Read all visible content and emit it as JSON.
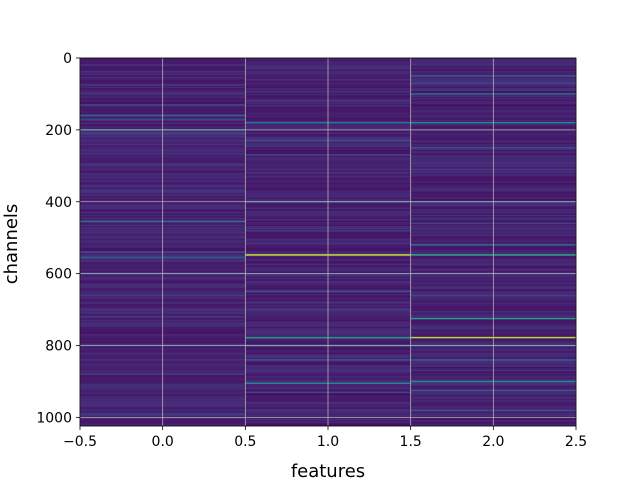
{
  "chart_data": {
    "type": "heatmap",
    "title": "",
    "xlabel": "features",
    "ylabel": "channels",
    "xlim": [
      -0.5,
      2.5
    ],
    "ylim": [
      1024,
      0
    ],
    "y_axis_inverted": true,
    "x_ticks": [
      -0.5,
      0.0,
      0.5,
      1.0,
      1.5,
      2.0,
      2.5
    ],
    "x_tick_labels": [
      "−0.5",
      "0.0",
      "0.5",
      "1.0",
      "1.5",
      "2.0",
      "2.5"
    ],
    "y_ticks": [
      0,
      200,
      400,
      600,
      800,
      1000
    ],
    "y_tick_labels": [
      "0",
      "200",
      "400",
      "600",
      "800",
      "1000"
    ],
    "grid": true,
    "colormap": "viridis",
    "colorbar": false,
    "columns": [
      0,
      1,
      2
    ],
    "n_channels": 1024,
    "base_value": 0.05,
    "highlights": {
      "0": [
        [
          75,
          0.18
        ],
        [
          100,
          0.15
        ],
        [
          130,
          0.2
        ],
        [
          160,
          0.3
        ],
        [
          170,
          0.22
        ],
        [
          200,
          0.35
        ],
        [
          210,
          0.22
        ],
        [
          240,
          0.14
        ],
        [
          300,
          0.15
        ],
        [
          370,
          0.18
        ],
        [
          455,
          0.38
        ],
        [
          540,
          0.25
        ],
        [
          555,
          0.3
        ],
        [
          600,
          0.22
        ],
        [
          660,
          0.18
        ],
        [
          720,
          0.15
        ],
        [
          800,
          0.3
        ],
        [
          880,
          0.18
        ],
        [
          990,
          0.18
        ]
      ],
      "1": [
        [
          60,
          0.14
        ],
        [
          120,
          0.15
        ],
        [
          180,
          0.4
        ],
        [
          230,
          0.25
        ],
        [
          270,
          0.22
        ],
        [
          320,
          0.15
        ],
        [
          400,
          0.35
        ],
        [
          480,
          0.18
        ],
        [
          548,
          0.92
        ],
        [
          600,
          0.22
        ],
        [
          650,
          0.25
        ],
        [
          700,
          0.18
        ],
        [
          778,
          0.55
        ],
        [
          800,
          0.3
        ],
        [
          840,
          0.25
        ],
        [
          870,
          0.15
        ],
        [
          905,
          0.45
        ],
        [
          930,
          0.22
        ],
        [
          980,
          0.15
        ]
      ],
      "2": [
        [
          50,
          0.3
        ],
        [
          70,
          0.22
        ],
        [
          100,
          0.38
        ],
        [
          180,
          0.48
        ],
        [
          250,
          0.25
        ],
        [
          310,
          0.18
        ],
        [
          400,
          0.3
        ],
        [
          460,
          0.2
        ],
        [
          520,
          0.35
        ],
        [
          548,
          0.62
        ],
        [
          600,
          0.28
        ],
        [
          660,
          0.2
        ],
        [
          725,
          0.55
        ],
        [
          778,
          0.88
        ],
        [
          800,
          0.35
        ],
        [
          840,
          0.3
        ],
        [
          900,
          0.48
        ],
        [
          925,
          0.3
        ],
        [
          980,
          0.25
        ]
      ]
    }
  }
}
